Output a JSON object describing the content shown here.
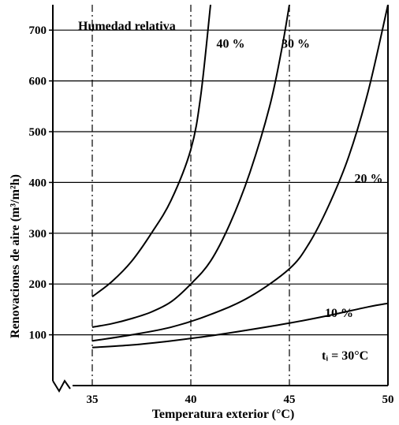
{
  "chart_data": {
    "type": "line",
    "title": "",
    "xlabel": "Temperatura exterior  (°C)",
    "ylabel": "Renovaciones de aire   (m³/m²h)",
    "xlim": [
      33.0,
      50.0
    ],
    "ylim": [
      0,
      750
    ],
    "x_ticks": [
      35,
      40,
      45,
      50
    ],
    "y_ticks": [
      100,
      200,
      300,
      400,
      500,
      600,
      700
    ],
    "grid": true,
    "legend_title": "Humedad relativa",
    "annotation": "tᵢ = 30°C",
    "series": [
      {
        "name": "40 %",
        "x": [
          35,
          36,
          37,
          38,
          39,
          40,
          40.5,
          41
        ],
        "y": [
          175,
          205,
          245,
          300,
          365,
          465,
          570,
          750
        ]
      },
      {
        "name": "30 %",
        "x": [
          35,
          36,
          37,
          38,
          39,
          40,
          41,
          42,
          43,
          44,
          44.6,
          45
        ],
        "y": [
          115,
          122,
          132,
          145,
          165,
          200,
          245,
          320,
          420,
          550,
          660,
          750
        ]
      },
      {
        "name": "20 %",
        "x": [
          35,
          37,
          39,
          41,
          43,
          45,
          46,
          47,
          48,
          49,
          50
        ],
        "y": [
          88,
          100,
          115,
          140,
          175,
          230,
          280,
          355,
          450,
          580,
          750
        ]
      },
      {
        "name": "10 %",
        "x": [
          35,
          37,
          39,
          41,
          43,
          45,
          47,
          49,
          50
        ],
        "y": [
          75,
          80,
          88,
          98,
          110,
          123,
          138,
          155,
          162
        ]
      }
    ]
  }
}
